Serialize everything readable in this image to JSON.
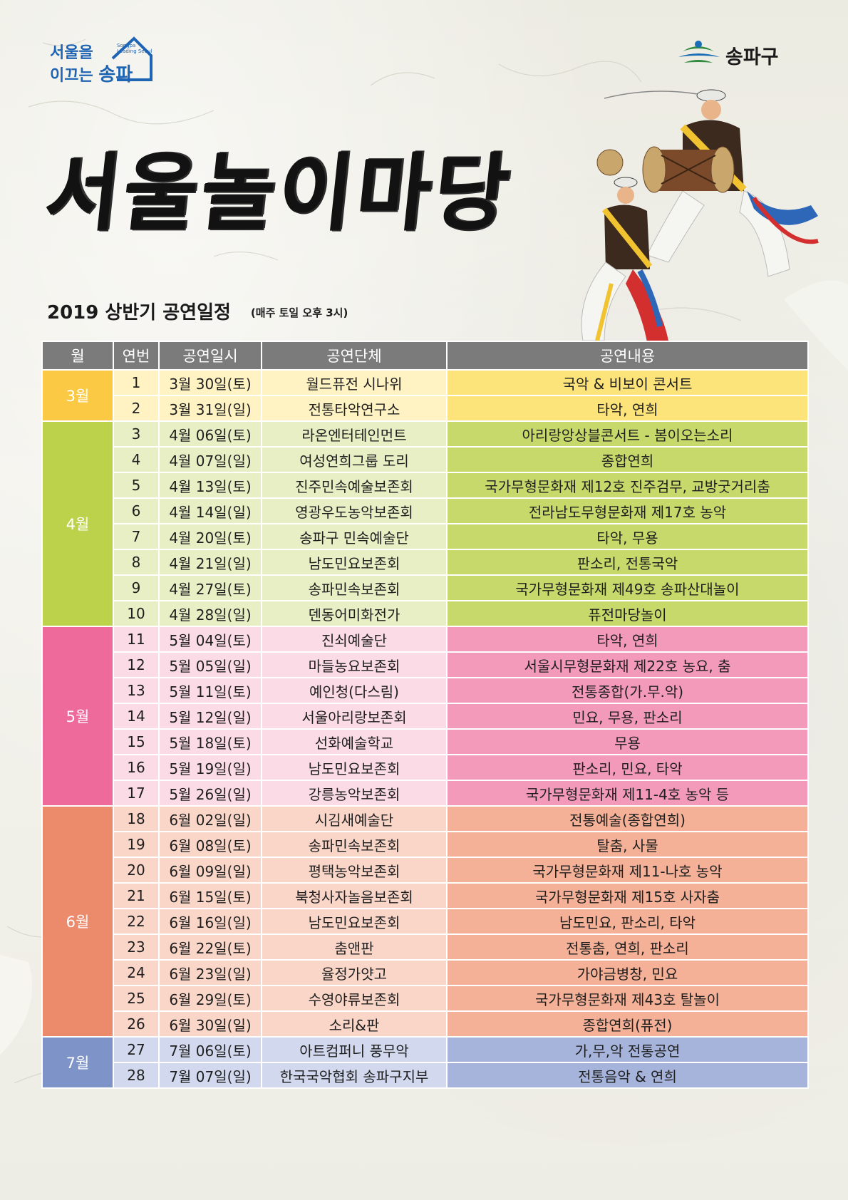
{
  "header": {
    "seoul_logo": {
      "line1": "서울을",
      "line2": "이끄는",
      "brand": "송파",
      "english": "Songpa Leading Seoul"
    },
    "district_logo": "송파구"
  },
  "title": "서울놀이마당",
  "subtitle": {
    "main": "2019 상반기 공연일정",
    "time": "(매주 토일 오후 3시)"
  },
  "table": {
    "headers": [
      "월",
      "연번",
      "공연일시",
      "공연단체",
      "공연내용"
    ],
    "months": [
      {
        "label": "3월",
        "month_color": "#fbc943",
        "light": "#fff3c4",
        "dark": "#fde47a",
        "rows": [
          {
            "no": "1",
            "date": "3월 30일(토)",
            "group": "월드퓨전 시나위",
            "content": "국악 & 비보이 콘서트"
          },
          {
            "no": "2",
            "date": "3월 31일(일)",
            "group": "전통타악연구소",
            "content": "타악, 연희"
          }
        ]
      },
      {
        "label": "4월",
        "month_color": "#bcd24a",
        "light": "#e8efc4",
        "dark": "#c6d96a",
        "rows": [
          {
            "no": "3",
            "date": "4월 06일(토)",
            "group": "라온엔터테인먼트",
            "content": "아리랑앙상블콘서트 - 봄이오는소리"
          },
          {
            "no": "4",
            "date": "4월 07일(일)",
            "group": "여성연희그룹 도리",
            "content": "종합연희"
          },
          {
            "no": "5",
            "date": "4월 13일(토)",
            "group": "진주민속예술보존회",
            "content": "국가무형문화재 제12호 진주검무, 교방굿거리춤"
          },
          {
            "no": "6",
            "date": "4월 14일(일)",
            "group": "영광우도농악보존회",
            "content": "전라남도무형문화재 제17호 농악"
          },
          {
            "no": "7",
            "date": "4월 20일(토)",
            "group": "송파구 민속예술단",
            "content": "타악, 무용"
          },
          {
            "no": "8",
            "date": "4월 21일(일)",
            "group": "남도민요보존회",
            "content": "판소리, 전통국악"
          },
          {
            "no": "9",
            "date": "4월 27일(토)",
            "group": "송파민속보존회",
            "content": "국가무형문화재 제49호 송파산대놀이"
          },
          {
            "no": "10",
            "date": "4월 28일(일)",
            "group": "덴동어미화전가",
            "content": "퓨전마당놀이"
          }
        ]
      },
      {
        "label": "5월",
        "month_color": "#ee6a9a",
        "light": "#fbdbe6",
        "dark": "#f39abb",
        "rows": [
          {
            "no": "11",
            "date": "5월 04일(토)",
            "group": "진쇠예술단",
            "content": "타악, 연희"
          },
          {
            "no": "12",
            "date": "5월 05일(일)",
            "group": "마들농요보존회",
            "content": "서울시무형문화재 제22호 농요, 춤"
          },
          {
            "no": "13",
            "date": "5월 11일(토)",
            "group": "예인청(다스림)",
            "content": "전통종합(가.무.악)"
          },
          {
            "no": "14",
            "date": "5월 12일(일)",
            "group": "서울아리랑보존회",
            "content": "민요, 무용, 판소리"
          },
          {
            "no": "15",
            "date": "5월 18일(토)",
            "group": "선화예술학교",
            "content": "무용"
          },
          {
            "no": "16",
            "date": "5월 19일(일)",
            "group": "남도민요보존회",
            "content": "판소리, 민요, 타악"
          },
          {
            "no": "17",
            "date": "5월 26일(일)",
            "group": "강릉농악보존회",
            "content": "국가무형문화재 제11-4호 농악 등"
          }
        ]
      },
      {
        "label": "6월",
        "month_color": "#ec8a6c",
        "light": "#f9d6c8",
        "dark": "#f4b197",
        "rows": [
          {
            "no": "18",
            "date": "6월 02일(일)",
            "group": "시김새예술단",
            "content": "전통예술(종합연희)"
          },
          {
            "no": "19",
            "date": "6월 08일(토)",
            "group": "송파민속보존회",
            "content": "탈춤, 사물"
          },
          {
            "no": "20",
            "date": "6월 09일(일)",
            "group": "평택농악보존회",
            "content": "국가무형문화재 제11-나호 농악"
          },
          {
            "no": "21",
            "date": "6월 15일(토)",
            "group": "북청사자놀음보존회",
            "content": "국가무형문화재 제15호 사자춤"
          },
          {
            "no": "22",
            "date": "6월 16일(일)",
            "group": "남도민요보존회",
            "content": "남도민요, 판소리, 타악"
          },
          {
            "no": "23",
            "date": "6월 22일(토)",
            "group": "춤앤판",
            "content": "전통춤, 연희, 판소리"
          },
          {
            "no": "24",
            "date": "6월 23일(일)",
            "group": "율정가얏고",
            "content": "가야금병창, 민요"
          },
          {
            "no": "25",
            "date": "6월 29일(토)",
            "group": "수영야류보존회",
            "content": "국가무형문화재 제43호 탈놀이"
          },
          {
            "no": "26",
            "date": "6월 30일(일)",
            "group": "소리&판",
            "content": "종합연희(퓨전)"
          }
        ]
      },
      {
        "label": "7월",
        "month_color": "#7e93c8",
        "light": "#d2d9ee",
        "dark": "#a6b4dc",
        "rows": [
          {
            "no": "27",
            "date": "7월 06일(토)",
            "group": "아트컴퍼니 풍무악",
            "content": "가,무,악 전통공연"
          },
          {
            "no": "28",
            "date": "7월 07일(일)",
            "group": "한국국악협회 송파구지부",
            "content": "전통음악 & 연희"
          }
        ]
      }
    ]
  }
}
